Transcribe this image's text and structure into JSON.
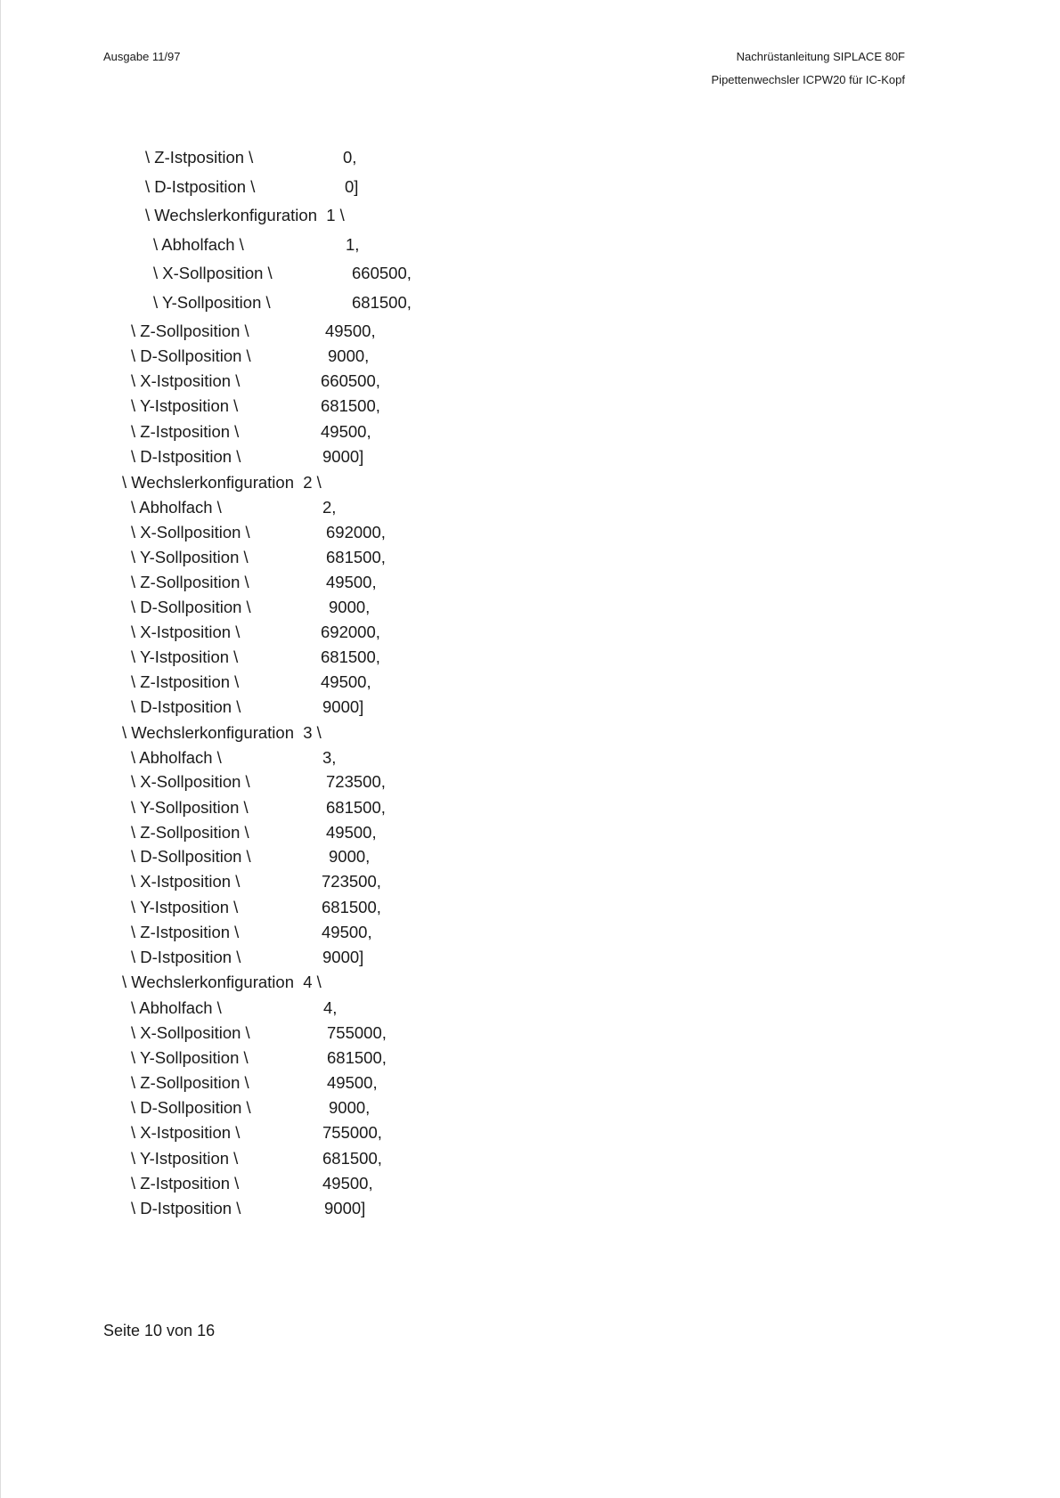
{
  "header": {
    "left": "Ausgabe 11/97",
    "right_line1": "Nachrüstanleitung SIPLACE 80F",
    "right_line2": "Pipettenwechsler ICPW20 für IC-Kopf"
  },
  "lines": [
    {
      "label": "\\ Z-Istposition \\",
      "value": "0,"
    },
    {
      "label": "\\ D-Istposition \\",
      "value": "0]"
    },
    {
      "label": "\\ Wechslerkonfiguration  1 \\",
      "value": ""
    },
    {
      "label": "\\ Abholfach \\",
      "value": "1,"
    },
    {
      "label": "\\ X-Sollposition \\",
      "value": "660500,"
    },
    {
      "label": "\\ Y-Sollposition \\",
      "value": "681500,"
    },
    {
      "label": "\\ Z-Sollposition \\",
      "value": "49500,"
    },
    {
      "label": "\\ D-Sollposition \\",
      "value": "9000,"
    },
    {
      "label": "\\ X-Istposition \\",
      "value": "660500,"
    },
    {
      "label": "\\ Y-Istposition \\",
      "value": "681500,"
    },
    {
      "label": "\\ Z-Istposition \\",
      "value": "49500,"
    },
    {
      "label": "\\ D-Istposition \\",
      "value": "9000]"
    },
    {
      "label": "\\ Wechslerkonfiguration  2 \\",
      "value": ""
    },
    {
      "label": "\\ Abholfach \\",
      "value": "2,"
    },
    {
      "label": "\\ X-Sollposition \\",
      "value": "692000,"
    },
    {
      "label": "\\ Y-Sollposition \\",
      "value": "681500,"
    },
    {
      "label": "\\ Z-Sollposition \\",
      "value": "49500,"
    },
    {
      "label": "\\ D-Sollposition \\",
      "value": "9000,"
    },
    {
      "label": "\\ X-Istposition \\",
      "value": "692000,"
    },
    {
      "label": "\\ Y-Istposition \\",
      "value": "681500,"
    },
    {
      "label": "\\ Z-Istposition \\",
      "value": "49500,"
    },
    {
      "label": "\\ D-Istposition \\",
      "value": "9000]"
    },
    {
      "label": "\\ Wechslerkonfiguration  3 \\",
      "value": ""
    },
    {
      "label": "\\ Abholfach \\",
      "value": "3,"
    },
    {
      "label": "\\ X-Sollposition \\",
      "value": "723500,"
    },
    {
      "label": "\\ Y-Sollposition \\",
      "value": "681500,"
    },
    {
      "label": "\\ Z-Sollposition \\",
      "value": "49500,"
    },
    {
      "label": "\\ D-Sollposition \\",
      "value": "9000,"
    },
    {
      "label": "\\ X-Istposition \\",
      "value": "723500,"
    },
    {
      "label": "\\ Y-Istposition \\",
      "value": "681500,"
    },
    {
      "label": "\\ Z-Istposition \\",
      "value": "49500,"
    },
    {
      "label": "\\ D-Istposition \\",
      "value": "9000]"
    },
    {
      "label": "\\ Wechslerkonfiguration  4 \\",
      "value": ""
    },
    {
      "label": "\\ Abholfach \\",
      "value": "4,"
    },
    {
      "label": "\\ X-Sollposition \\",
      "value": "755000,"
    },
    {
      "label": "\\ Y-Sollposition \\",
      "value": "681500,"
    },
    {
      "label": "\\ Z-Sollposition \\",
      "value": "49500,"
    },
    {
      "label": "\\ D-Sollposition \\",
      "value": "9000,"
    },
    {
      "label": "\\ X-Istposition \\",
      "value": "755000,"
    },
    {
      "label": "\\ Y-Istposition \\",
      "value": "681500,"
    },
    {
      "label": "\\ Z-Istposition \\",
      "value": "49500,"
    },
    {
      "label": "\\ D-Istposition \\",
      "value": "9000]"
    }
  ],
  "footer": {
    "page": "Seite 10 von 16"
  }
}
